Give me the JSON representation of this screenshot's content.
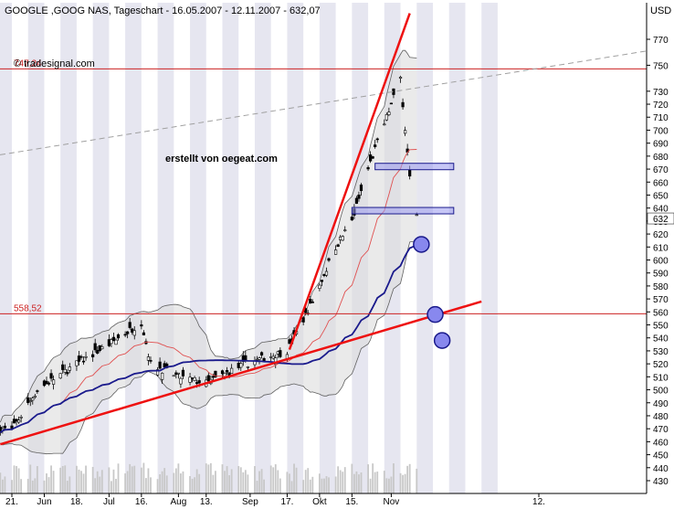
{
  "chart_data": {
    "type": "candlestick",
    "title": "GOOGLE ,GOOG NAS, Tageschart - 16.05.2007 - 12.11.2007 - 632,07",
    "currency": "USD",
    "watermark": "© tradesignal.com",
    "annotation": "erstellt von oegeat.com",
    "last_price_label": "632",
    "ylim": [
      425,
      790
    ],
    "y_ticks": [
      430,
      440,
      450,
      460,
      470,
      480,
      490,
      500,
      510,
      520,
      530,
      540,
      550,
      560,
      570,
      580,
      590,
      600,
      610,
      620,
      630,
      640,
      650,
      660,
      670,
      680,
      690,
      700,
      710,
      720,
      730,
      750,
      770
    ],
    "x_ticks": [
      "21.",
      "Jun",
      "18.",
      "Jul",
      "16.",
      "Aug",
      "13.",
      "Sep",
      "17.",
      "Okt",
      "15.",
      "Nov",
      "12."
    ],
    "horizontal_levels": [
      {
        "value": 747.24,
        "label": "747,24"
      },
      {
        "value": 558.52,
        "label": "558,52"
      }
    ],
    "price_series": {
      "sampled_closes": [
        {
          "date": "2007-05-16",
          "close": 470
        },
        {
          "date": "2007-05-21",
          "close": 469
        },
        {
          "date": "2007-06-01",
          "close": 500
        },
        {
          "date": "2007-06-18",
          "close": 520
        },
        {
          "date": "2007-07-02",
          "close": 535
        },
        {
          "date": "2007-07-16",
          "close": 552
        },
        {
          "date": "2007-07-20",
          "close": 520
        },
        {
          "date": "2007-08-01",
          "close": 510
        },
        {
          "date": "2007-08-13",
          "close": 505
        },
        {
          "date": "2007-08-30",
          "close": 520
        },
        {
          "date": "2007-09-17",
          "close": 530
        },
        {
          "date": "2007-09-28",
          "close": 568
        },
        {
          "date": "2007-10-08",
          "close": 610
        },
        {
          "date": "2007-10-15",
          "close": 630
        },
        {
          "date": "2007-10-22",
          "close": 670
        },
        {
          "date": "2007-11-05",
          "close": 740
        },
        {
          "date": "2007-11-09",
          "close": 663
        },
        {
          "date": "2007-11-12",
          "close": 632
        }
      ]
    },
    "trendlines": [
      {
        "from": {
          "date": "2007-05-16",
          "value": 458
        },
        "to": {
          "date": "2007-12-10",
          "value": 568
        }
      },
      {
        "from": {
          "date": "2007-09-18",
          "value": 531
        },
        "to": {
          "date": "2007-11-09",
          "value": 790
        }
      }
    ],
    "zones": [
      {
        "from_date": "2007-10-25",
        "to_date": "2007-11-28",
        "value": 672
      },
      {
        "from_date": "2007-10-15",
        "to_date": "2007-11-28",
        "value": 638
      }
    ],
    "target_markers": [
      {
        "date": "2007-11-14",
        "value": 612
      },
      {
        "date": "2007-11-20",
        "value": 558
      },
      {
        "date": "2007-11-23",
        "value": 538
      }
    ]
  }
}
